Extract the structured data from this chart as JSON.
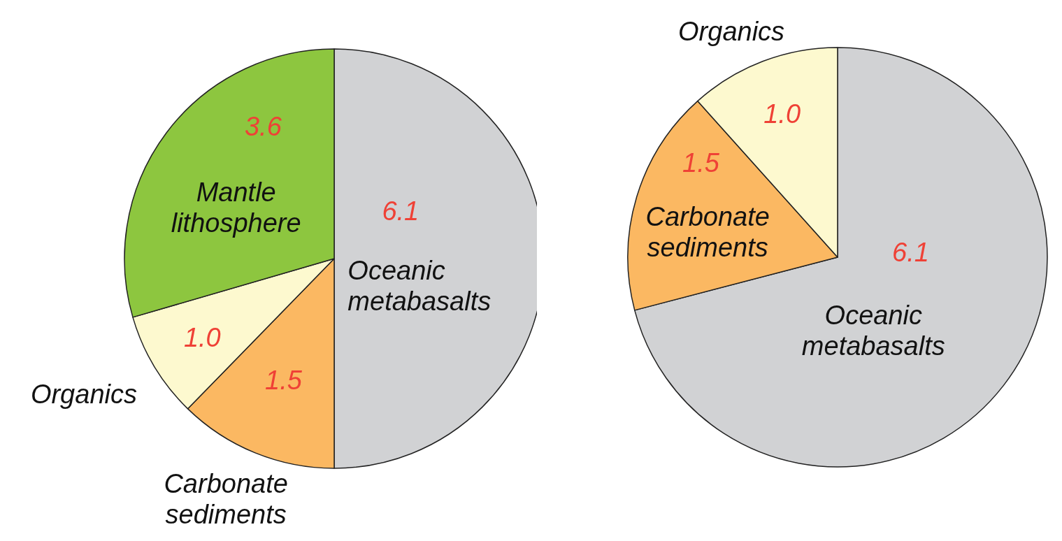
{
  "chart_data": [
    {
      "type": "pie",
      "categories": [
        "Oceanic metabasalts",
        "Carbonate sediments",
        "Organics",
        "Mantle lithosphere"
      ],
      "values": [
        6.1,
        1.5,
        1.0,
        3.6
      ],
      "colors": [
        "#d1d2d4",
        "#fbb862",
        "#fdf9cf",
        "#8dc63f"
      ],
      "value_labels": [
        "6.1",
        "1.5",
        "1.0",
        "3.6"
      ]
    },
    {
      "type": "pie",
      "categories": [
        "Oceanic metabasalts",
        "Carbonate sediments",
        "Organics"
      ],
      "values": [
        6.1,
        1.5,
        1.0
      ],
      "colors": [
        "#d1d2d4",
        "#fbb862",
        "#fdf9cf"
      ],
      "value_labels": [
        "6.1",
        "1.5",
        "1.0"
      ]
    }
  ]
}
